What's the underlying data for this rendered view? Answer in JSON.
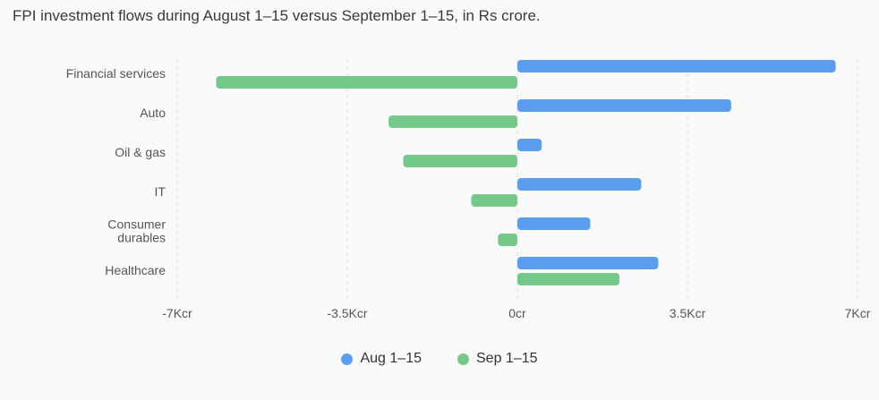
{
  "title": "FPI investment flows during August 1–15 versus September 1–15, in Rs crore.",
  "chart_data": {
    "type": "bar",
    "orientation": "horizontal",
    "categories": [
      "Financial services",
      "Auto",
      "Oil & gas",
      "IT",
      "Consumer durables",
      "Healthcare"
    ],
    "category_lines": [
      [
        "Financial services"
      ],
      [
        "Auto"
      ],
      [
        "Oil & gas"
      ],
      [
        "IT"
      ],
      [
        "Consumer",
        "durables"
      ],
      [
        "Healthcare"
      ]
    ],
    "series": [
      {
        "name": "Aug 1–15",
        "color": "#5b9ef0",
        "values": [
          6550,
          4400,
          500,
          2550,
          1500,
          2900
        ]
      },
      {
        "name": "Sep 1–15",
        "color": "#74c98a",
        "values": [
          -6200,
          -2650,
          -2350,
          -950,
          -400,
          2100
        ]
      }
    ],
    "xlim": [
      -7000,
      7000
    ],
    "ticks": [
      -7000,
      -3500,
      0,
      3500,
      7000
    ],
    "tick_labels": [
      "-7Kcr",
      "-3.5Kcr",
      "0cr",
      "3.5Kcr",
      "7Kcr"
    ],
    "grid": true,
    "legend_position": "bottom"
  }
}
